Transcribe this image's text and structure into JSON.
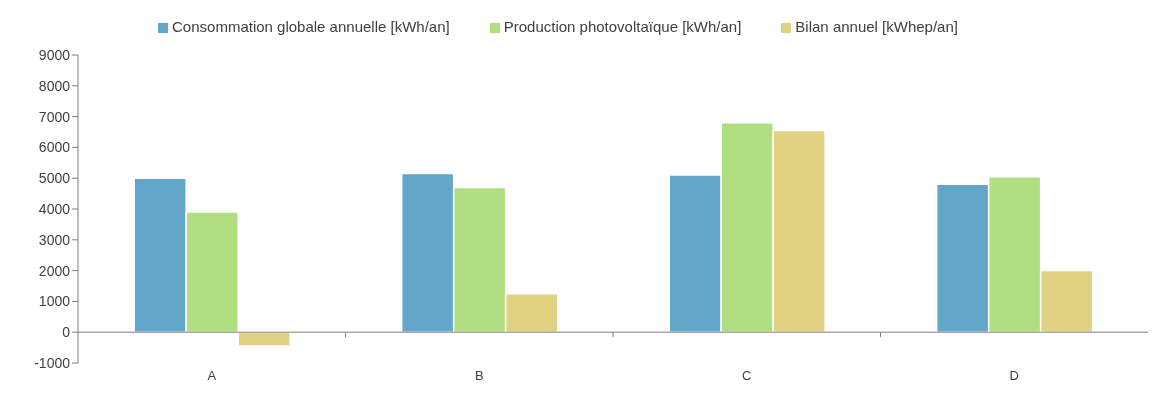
{
  "chart_data": {
    "type": "bar",
    "categories": [
      "A",
      "B",
      "C",
      "D"
    ],
    "series": [
      {
        "name": "Consommation globale annuelle [kWh/an]",
        "color": "#62a6c9",
        "values": [
          5000,
          5150,
          5100,
          4800
        ]
      },
      {
        "name": "Production photovoltaïque [kWh/an]",
        "color": "#b1de80",
        "values": [
          3900,
          4700,
          6800,
          5050
        ]
      },
      {
        "name": "Bilan annuel [kWhep/an]",
        "color": "#e0d282",
        "values": [
          -450,
          1250,
          6550,
          2000
        ]
      }
    ],
    "ylim": [
      -1000,
      9000
    ],
    "yticks": [
      -1000,
      0,
      1000,
      2000,
      3000,
      4000,
      5000,
      6000,
      7000,
      8000,
      9000
    ],
    "legend": "top"
  }
}
